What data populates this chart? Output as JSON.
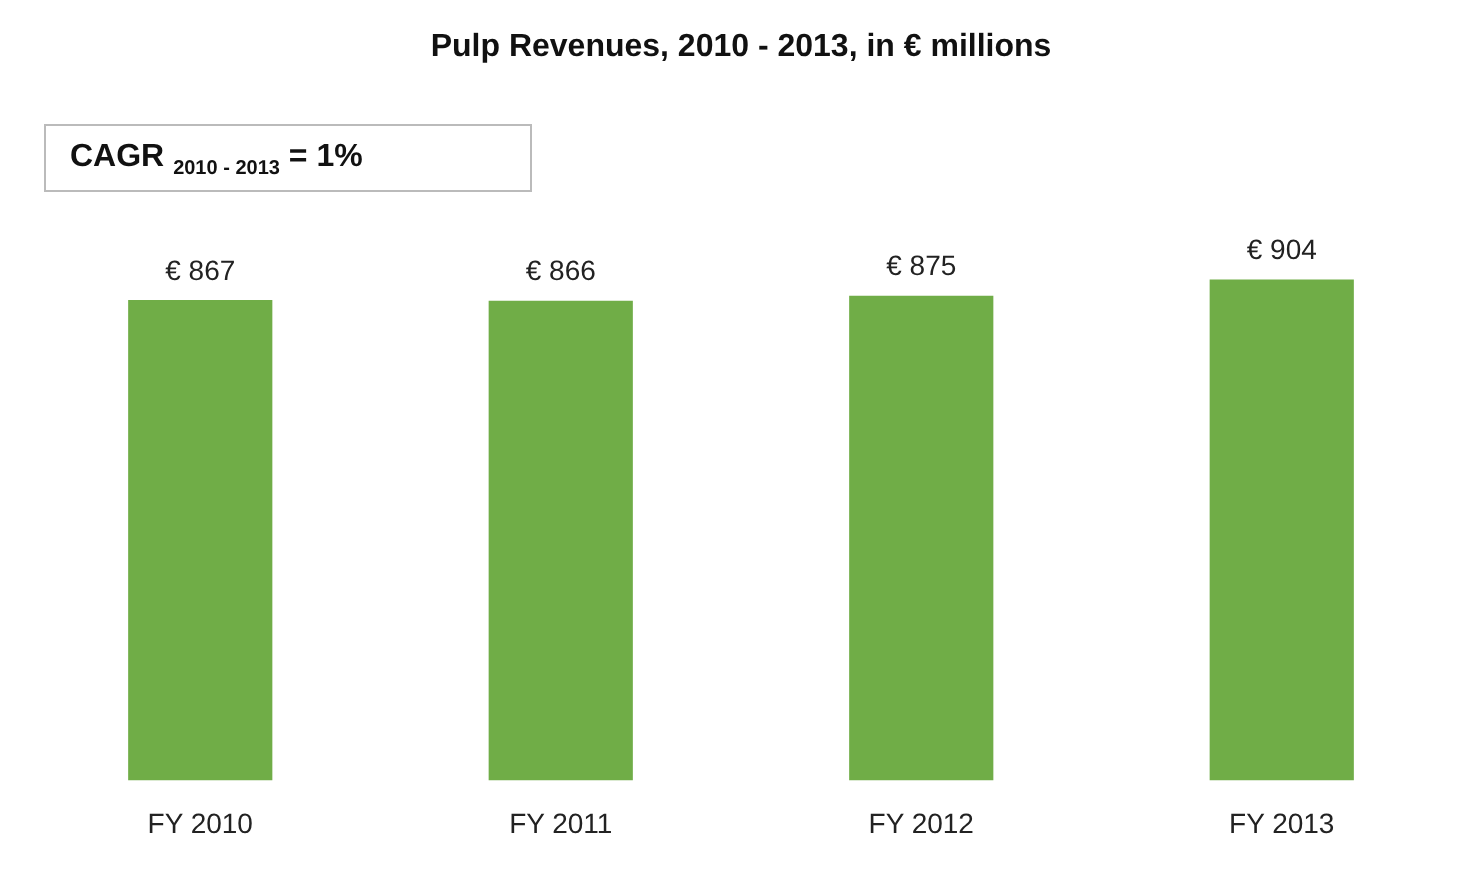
{
  "chart_data": {
    "type": "bar",
    "title": "Pulp Revenues, 2010 - 2013, in € millions",
    "categories": [
      "FY 2010",
      "FY 2011",
      "FY 2012",
      "FY 2013"
    ],
    "values": [
      867,
      866,
      875,
      904
    ],
    "value_labels": [
      "€ 867",
      "€ 866",
      "€ 875",
      "€ 904"
    ],
    "color": "#70ad47",
    "annotations": [
      "CAGR $_{2010 - 2013}$ = 1%"
    ],
    "grid": false,
    "legend": false
  }
}
